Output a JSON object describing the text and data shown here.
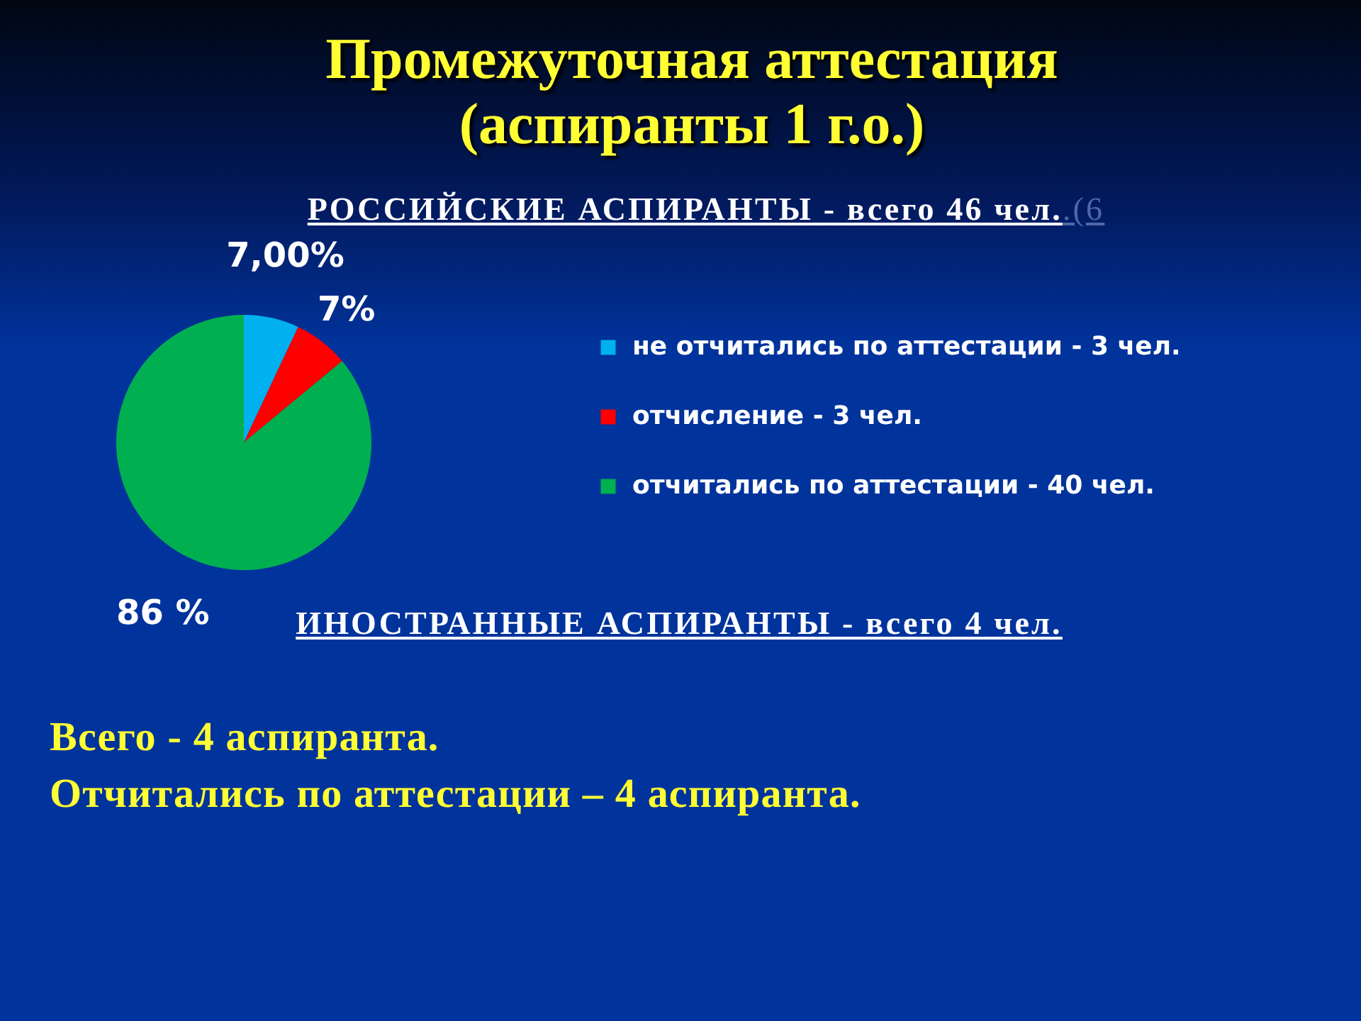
{
  "chart_data": {
    "type": "pie",
    "title": "Промежуточная аттестация (аспиранты 1 г.о.)",
    "subtitle": "РОССИЙСКИЕ АСПИРАНТЫ - всего 46 чел.",
    "categories": [
      "не отчитались по аттестации - 3 чел.",
      "отчисление - 3 чел.",
      "отчитались по аттестации - 40 чел."
    ],
    "values": [
      7,
      7,
      86
    ],
    "colors": [
      "#00b0f0",
      "#ff0000",
      "#00b050"
    ],
    "value_labels": [
      "7,00%",
      "7%",
      "86 %"
    ],
    "legend": "right",
    "annotations": [
      ".(6",
      "ИНОСТРАННЫЕ АСПИРАНТЫ - всего 4 чел.",
      "Всего - 4 аспиранта.",
      "Отчитались по аттестации – 4 аспиранта."
    ]
  }
}
